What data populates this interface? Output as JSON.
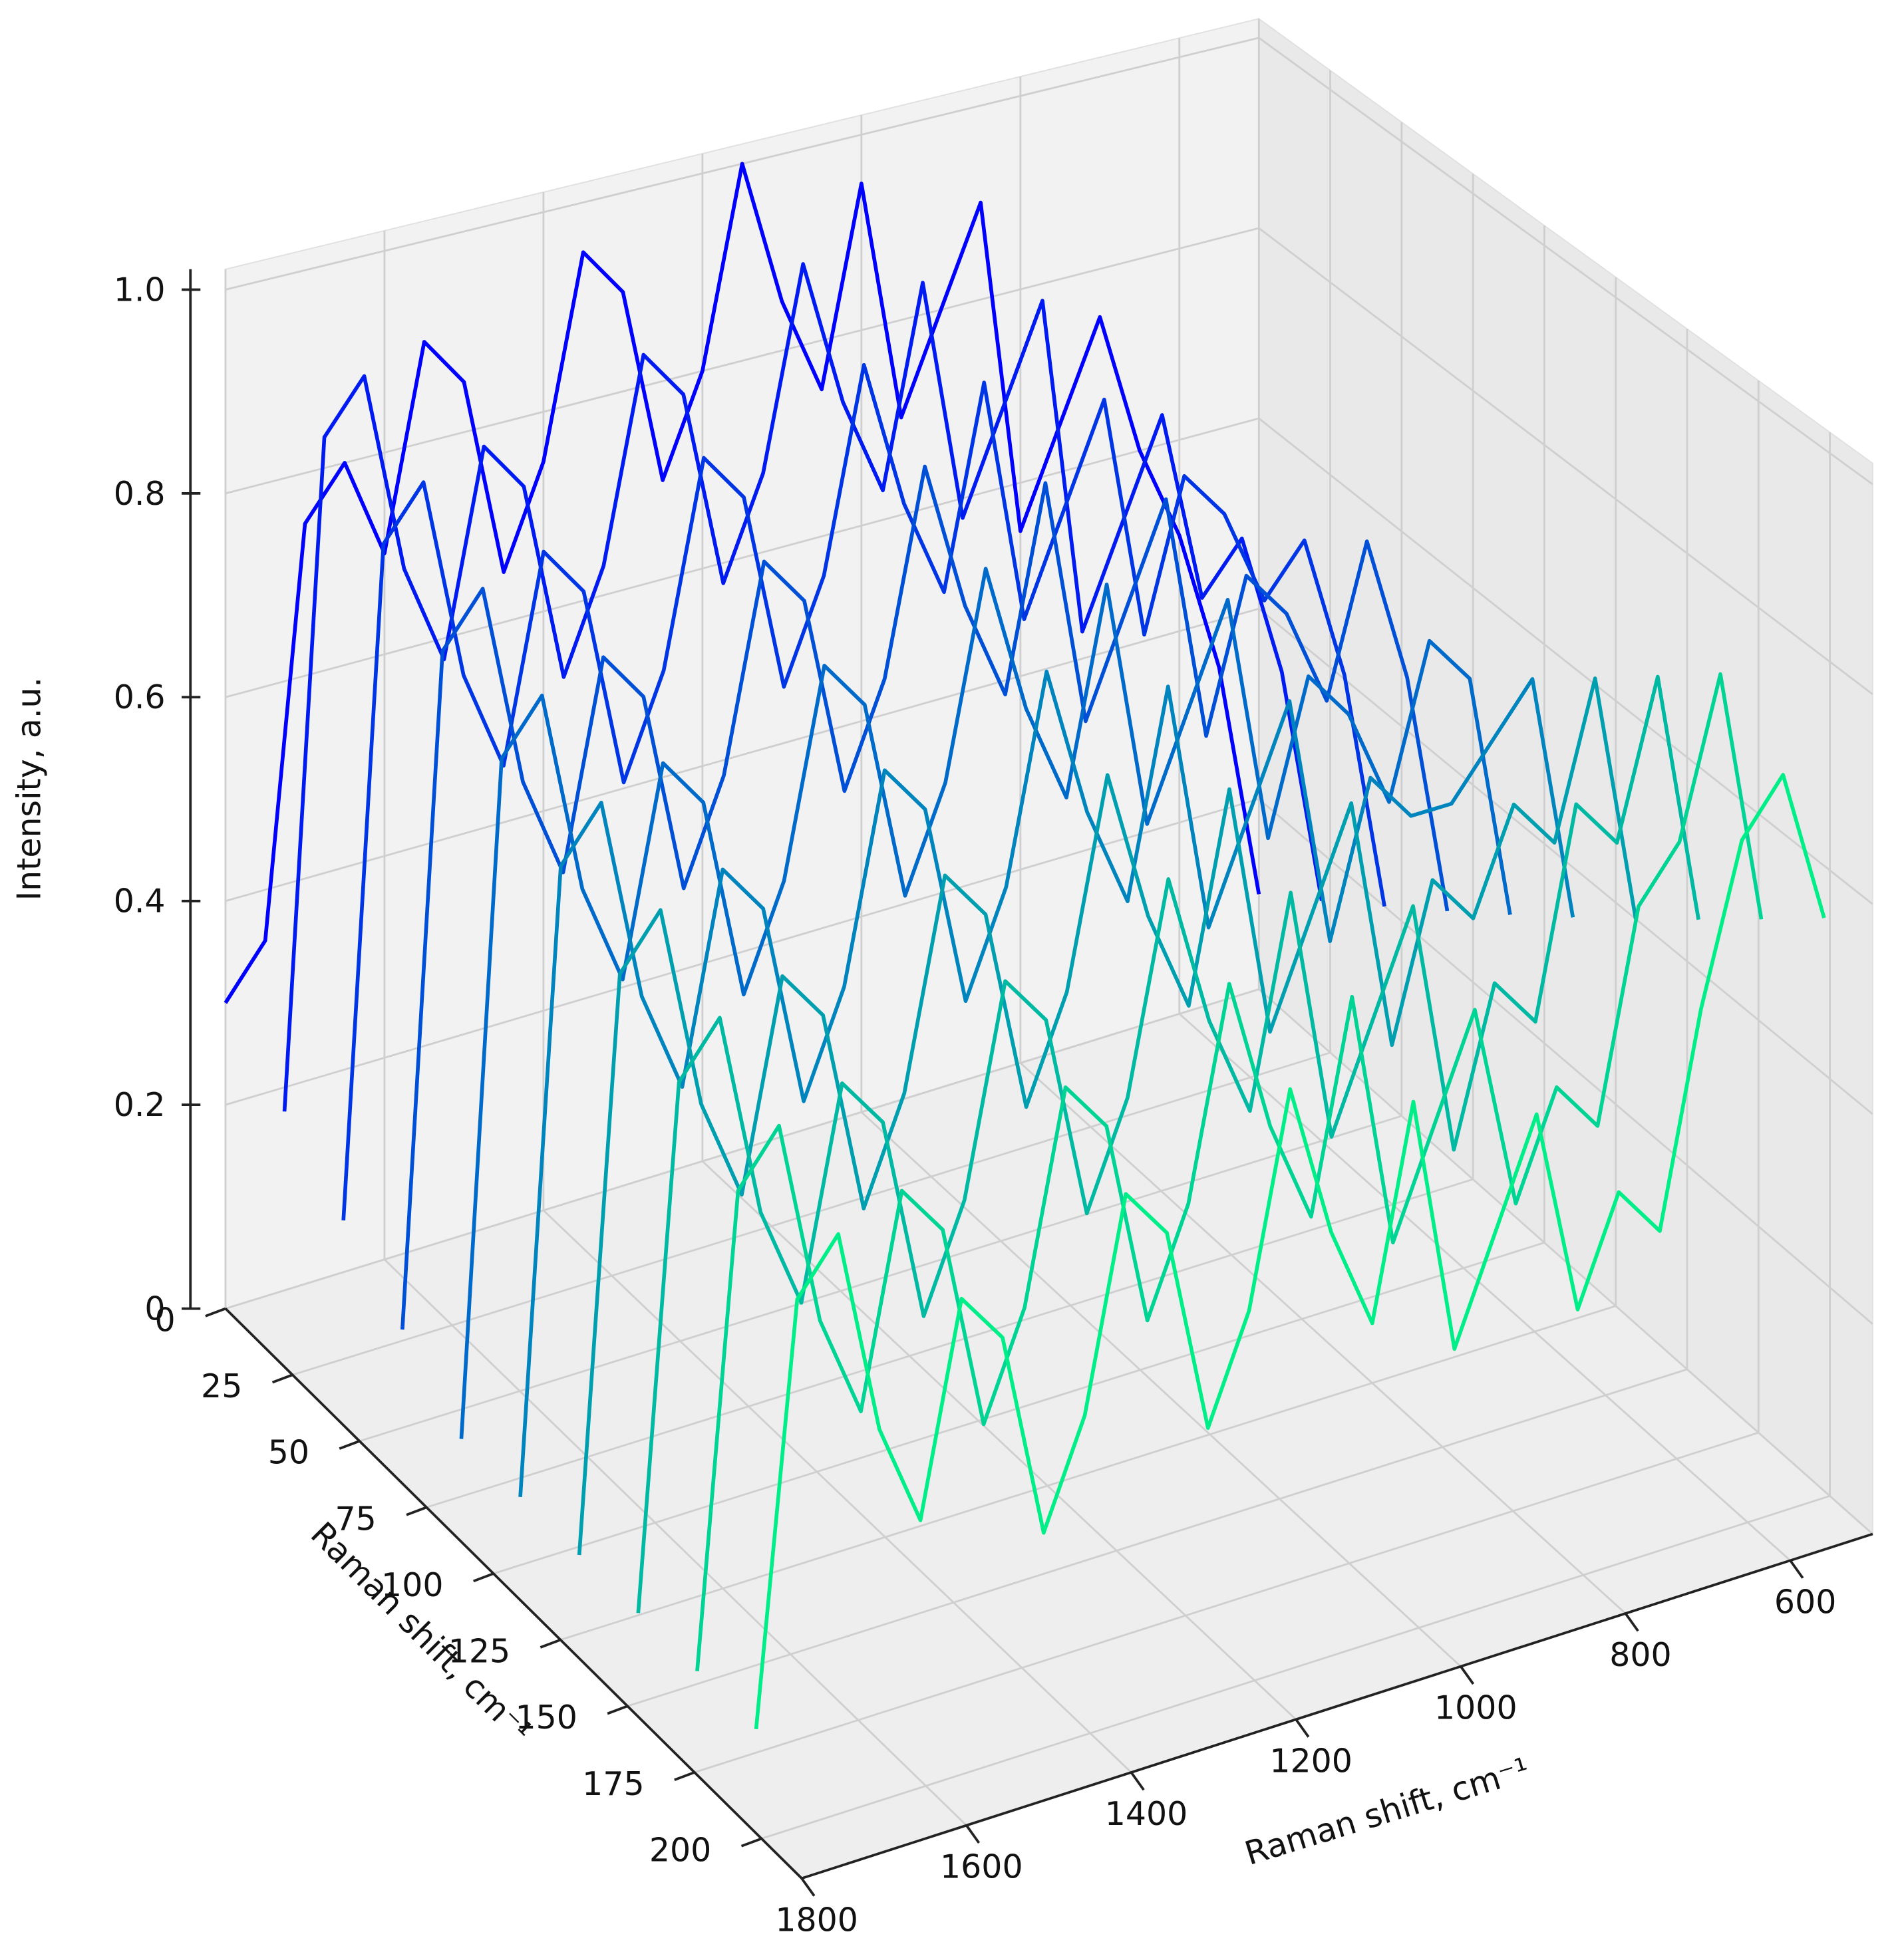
{
  "chart_data": {
    "type": "waterfall3d",
    "zlabel": "Intensity, a.u.",
    "dlabel": "Raman shift, cm⁻¹",
    "xlabel": "Raman shift, cm⁻¹",
    "xlim": [
      500,
      1800
    ],
    "xticks": [
      600,
      800,
      1000,
      1200,
      1400,
      1600,
      1800
    ],
    "dlim": [
      0,
      215
    ],
    "dticks": [
      0,
      25,
      50,
      75,
      100,
      125,
      150,
      175,
      200
    ],
    "zlim": [
      0,
      1.02
    ],
    "zticks": [
      0,
      0.2,
      0.4,
      0.6,
      0.8,
      {
        "value": 1,
        "label": "1.0"
      }
    ],
    "grid": true,
    "x": [
      500,
      550,
      600,
      650,
      700,
      750,
      800,
      850,
      900,
      950,
      1000,
      1050,
      1100,
      1150,
      1200,
      1250,
      1300,
      1350,
      1400,
      1450,
      1500,
      1550,
      1600,
      1650,
      1700,
      1750,
      1800
    ],
    "series": [
      {
        "depth": 0,
        "color": "#0000ff",
        "values": [
          0.1,
          0.35,
          0.5,
          0.6,
          0.75,
          0.65,
          0.55,
          0.9,
          0.8,
          0.7,
          0.95,
          0.75,
          0.85,
          1.0,
          0.8,
          0.7,
          0.9,
          0.95,
          0.75,
          0.65,
          0.85,
          0.9,
          0.7,
          0.8,
          0.75,
          0.35,
          0.3
        ]
      },
      {
        "depth": 22,
        "color": "#001af2",
        "values": [
          0.15,
          0.4,
          0.55,
          0.5,
          0.7,
          0.6,
          0.5,
          0.85,
          0.75,
          0.65,
          0.9,
          0.7,
          0.8,
          0.95,
          0.75,
          0.65,
          0.85,
          0.9,
          0.7,
          0.6,
          0.8,
          0.85,
          0.65,
          0.75,
          0.95,
          0.9,
          0.25
        ]
      },
      {
        "depth": 44,
        "color": "#0035e5",
        "values": [
          0.2,
          0.45,
          0.6,
          0.55,
          0.65,
          0.7,
          0.55,
          0.8,
          0.7,
          0.6,
          0.85,
          0.65,
          0.75,
          0.9,
          0.7,
          0.6,
          0.8,
          0.85,
          0.65,
          0.55,
          0.75,
          0.8,
          0.6,
          0.7,
          0.9,
          0.85,
          0.2
        ]
      },
      {
        "depth": 66,
        "color": "#004fd7",
        "values": [
          0.25,
          0.5,
          0.65,
          0.5,
          0.6,
          0.65,
          0.5,
          0.75,
          0.65,
          0.55,
          0.8,
          0.6,
          0.7,
          0.85,
          0.65,
          0.55,
          0.75,
          0.8,
          0.6,
          0.5,
          0.7,
          0.75,
          0.55,
          0.65,
          0.85,
          0.8,
          0.15
        ]
      },
      {
        "depth": 88,
        "color": "#006aca",
        "values": [
          0.3,
          0.55,
          0.6,
          0.45,
          0.55,
          0.6,
          0.45,
          0.7,
          0.6,
          0.5,
          0.75,
          0.55,
          0.65,
          0.8,
          0.6,
          0.5,
          0.7,
          0.75,
          0.55,
          0.45,
          0.65,
          0.7,
          0.5,
          0.6,
          0.8,
          0.75,
          0.1
        ]
      },
      {
        "depth": 110,
        "color": "#0084bd",
        "values": [
          0.35,
          0.6,
          0.55,
          0.5,
          0.5,
          0.55,
          0.4,
          0.65,
          0.55,
          0.45,
          0.7,
          0.5,
          0.6,
          0.75,
          0.55,
          0.45,
          0.65,
          0.7,
          0.5,
          0.4,
          0.6,
          0.65,
          0.45,
          0.55,
          0.75,
          0.7,
          0.1
        ]
      },
      {
        "depth": 132,
        "color": "#009fb0",
        "values": [
          0.4,
          0.65,
          0.5,
          0.55,
          0.45,
          0.5,
          0.35,
          0.6,
          0.5,
          0.4,
          0.65,
          0.45,
          0.55,
          0.7,
          0.5,
          0.4,
          0.6,
          0.65,
          0.45,
          0.35,
          0.55,
          0.6,
          0.4,
          0.5,
          0.7,
          0.65,
          0.1
        ]
      },
      {
        "depth": 154,
        "color": "#00b9a2",
        "values": [
          0.45,
          0.7,
          0.55,
          0.6,
          0.4,
          0.45,
          0.3,
          0.55,
          0.45,
          0.35,
          0.6,
          0.4,
          0.5,
          0.65,
          0.45,
          0.35,
          0.55,
          0.6,
          0.4,
          0.3,
          0.5,
          0.55,
          0.35,
          0.45,
          0.65,
          0.6,
          0.1
        ]
      },
      {
        "depth": 176,
        "color": "#00d495",
        "values": [
          0.5,
          0.75,
          0.6,
          0.55,
          0.35,
          0.4,
          0.3,
          0.5,
          0.4,
          0.3,
          0.55,
          0.35,
          0.45,
          0.6,
          0.4,
          0.3,
          0.5,
          0.55,
          0.35,
          0.25,
          0.45,
          0.5,
          0.3,
          0.4,
          0.6,
          0.55,
          0.1
        ]
      },
      {
        "depth": 198,
        "color": "#00ee88",
        "values": [
          0.55,
          0.7,
          0.65,
          0.5,
          0.3,
          0.35,
          0.25,
          0.45,
          0.35,
          0.25,
          0.5,
          0.3,
          0.4,
          0.55,
          0.35,
          0.25,
          0.45,
          0.5,
          0.3,
          0.2,
          0.4,
          0.45,
          0.25,
          0.35,
          0.55,
          0.5,
          0.1
        ]
      }
    ]
  }
}
